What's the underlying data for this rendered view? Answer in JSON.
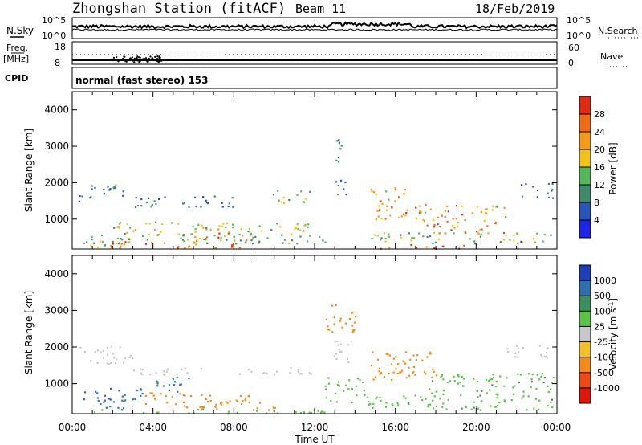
{
  "header": {
    "station": "Zhongshan Station (fitACF)",
    "beam": "Beam 11",
    "date": "18/Feb/2019"
  },
  "mode_line": "normal (fast stereo) 153",
  "nsky": {
    "left_label": "N.Sky",
    "right_label": "N.Search",
    "left_ticks": [
      "10^5",
      "10^0"
    ],
    "right_ticks": [
      "10^5",
      "10^0"
    ]
  },
  "freq": {
    "left_label_1": "Freq.",
    "left_label_2": "[MHz]",
    "right_label": "Nave",
    "left_ticks": [
      "18",
      "8"
    ],
    "right_ticks": [
      "60",
      "0"
    ]
  },
  "cpid_label": "CPID",
  "xaxis": {
    "label": "Time UT",
    "ticks": [
      "00:00",
      "04:00",
      "08:00",
      "12:00",
      "16:00",
      "20:00",
      "00:00"
    ]
  },
  "chart_data": [
    {
      "type": "heatmap",
      "title": "",
      "xlabel": "",
      "ylabel": "Slant Range [km]",
      "yticks": [
        "1000",
        "2000",
        "3000",
        "4000"
      ],
      "ylim": [
        180,
        4500
      ],
      "xlim_hours": [
        0,
        24
      ],
      "colorbar": {
        "label": "Power [dB]",
        "ticks": [
          "4",
          "8",
          "12",
          "16",
          "20",
          "24",
          "28"
        ],
        "range": [
          0,
          30
        ],
        "colors": [
          "#1f24e6",
          "#2a55b8",
          "#3f8a6a",
          "#56b85a",
          "#f2c21a",
          "#f59a1c",
          "#f06a18",
          "#e02a12"
        ]
      },
      "regions": [
        {
          "x": [
            1.8,
            9.0
          ],
          "y": [
            220,
            440
          ],
          "value": 26
        },
        {
          "x": [
            0.2,
            1.7
          ],
          "y": [
            250,
            420
          ],
          "value": 14
        },
        {
          "x": [
            5.0,
            8.8
          ],
          "y": [
            420,
            650
          ],
          "value": 24
        },
        {
          "x": [
            2.0,
            12.0
          ],
          "y": [
            600,
            950
          ],
          "value": 17
        },
        {
          "x": [
            0.5,
            12.5
          ],
          "y": [
            350,
            600
          ],
          "value": 12
        },
        {
          "x": [
            0.3,
            2.5
          ],
          "y": [
            1500,
            2000
          ],
          "value": 8
        },
        {
          "x": [
            2.5,
            8.0
          ],
          "y": [
            1350,
            1650
          ],
          "value": 8
        },
        {
          "x": [
            9.8,
            11.8
          ],
          "y": [
            1450,
            1800
          ],
          "value": 14
        },
        {
          "x": [
            13.0,
            14.0
          ],
          "y": [
            1700,
            2100
          ],
          "value": 8
        },
        {
          "x": [
            14.5,
            16.5
          ],
          "y": [
            1500,
            1900
          ],
          "value": 20
        },
        {
          "x": [
            15.0,
            21.5
          ],
          "y": [
            950,
            1450
          ],
          "value": 22
        },
        {
          "x": [
            17.5,
            21.0
          ],
          "y": [
            600,
            1000
          ],
          "value": 24
        },
        {
          "x": [
            14.8,
            23.8
          ],
          "y": [
            350,
            650
          ],
          "value": 14
        },
        {
          "x": [
            14.8,
            20.0
          ],
          "y": [
            200,
            320
          ],
          "value": 26
        },
        {
          "x": [
            22.0,
            23.8
          ],
          "y": [
            1600,
            2000
          ],
          "value": 8
        },
        {
          "x": [
            12.8,
            13.5
          ],
          "y": [
            2400,
            3200
          ],
          "value": 10
        }
      ]
    },
    {
      "type": "heatmap",
      "title": "",
      "xlabel": "Time UT",
      "ylabel": "Slant Range [km]",
      "yticks": [
        "1000",
        "2000",
        "3000",
        "4000"
      ],
      "ylim": [
        180,
        4500
      ],
      "xlim_hours": [
        0,
        24
      ],
      "colorbar": {
        "label": "Velocity [m s^-1]",
        "ticks": [
          "1000",
          "500",
          "100",
          "25",
          "-25",
          "-100",
          "-500",
          "-1000"
        ],
        "colors": [
          "#1e3fb8",
          "#2f6fb0",
          "#3a8f5f",
          "#5cc24a",
          "#c8c8c8",
          "#f5c02a",
          "#f58a1c",
          "#ef4a14",
          "#e0160c"
        ]
      },
      "regions": [
        {
          "x": [
            0.2,
            12.5
          ],
          "y": [
            200,
            320
          ],
          "value": 50
        },
        {
          "x": [
            0.5,
            3.5
          ],
          "y": [
            300,
            900
          ],
          "value": 700
        },
        {
          "x": [
            3.5,
            6.5
          ],
          "y": [
            350,
            800
          ],
          "value": -150
        },
        {
          "x": [
            6.0,
            10.0
          ],
          "y": [
            300,
            700
          ],
          "value": -350
        },
        {
          "x": [
            4.0,
            6.0
          ],
          "y": [
            800,
            1200
          ],
          "value": 600
        },
        {
          "x": [
            0.3,
            3.0
          ],
          "y": [
            1550,
            2050
          ],
          "value": 0
        },
        {
          "x": [
            3.0,
            12.0
          ],
          "y": [
            1250,
            1450
          ],
          "value": 0
        },
        {
          "x": [
            12.8,
            14.2
          ],
          "y": [
            1600,
            2200
          ],
          "value": 0
        },
        {
          "x": [
            14.5,
            18.0
          ],
          "y": [
            1100,
            1900
          ],
          "value": -200
        },
        {
          "x": [
            17.5,
            23.8
          ],
          "y": [
            700,
            1300
          ],
          "value": 80
        },
        {
          "x": [
            14.5,
            23.8
          ],
          "y": [
            300,
            700
          ],
          "value": 80
        },
        {
          "x": [
            12.5,
            14.5
          ],
          "y": [
            500,
            1200
          ],
          "value": 80
        },
        {
          "x": [
            12.5,
            14.0
          ],
          "y": [
            2400,
            3200
          ],
          "value": -200
        },
        {
          "x": [
            21.5,
            23.8
          ],
          "y": [
            1700,
            2100
          ],
          "value": 0
        }
      ]
    }
  ]
}
